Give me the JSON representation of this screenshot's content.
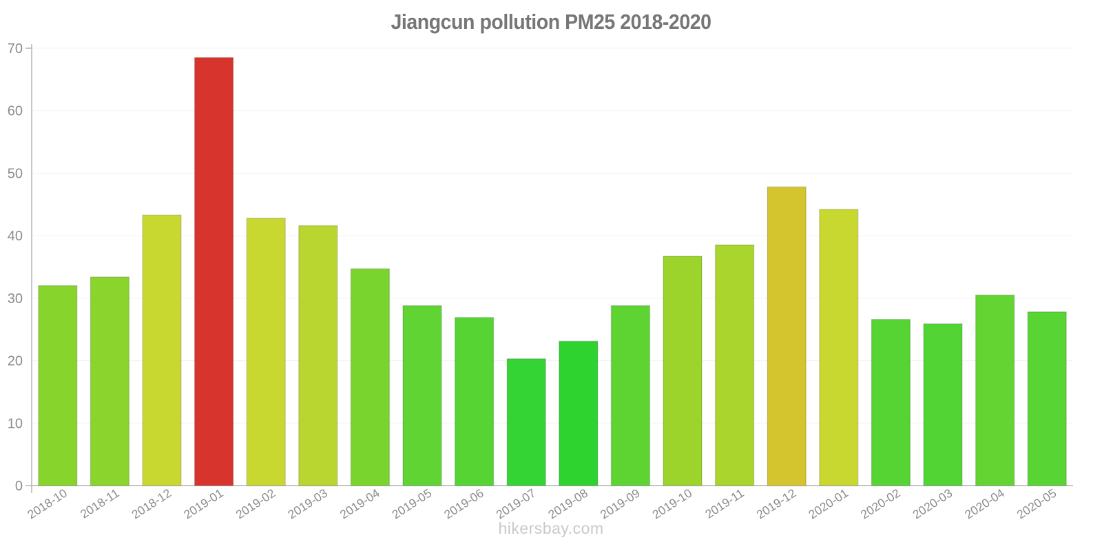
{
  "title": "Jiangcun pollution PM25 2018-2020",
  "watermark": "hikersbay.com",
  "chart_data": {
    "type": "bar",
    "title": "Jiangcun pollution PM25 2018-2020",
    "xlabel": "",
    "ylabel": "",
    "ylim": [
      0,
      70
    ],
    "yticks": [
      0,
      10,
      20,
      30,
      40,
      50,
      60,
      70
    ],
    "grid": true,
    "legend": "none",
    "categories": [
      "2018-10",
      "2018-11",
      "2018-12",
      "2019-01",
      "2019-02",
      "2019-03",
      "2019-04",
      "2019-05",
      "2019-06",
      "2019-07",
      "2019-08",
      "2019-09",
      "2019-10",
      "2019-11",
      "2019-12",
      "2020-01",
      "2020-02",
      "2020-03",
      "2020-04",
      "2020-05"
    ],
    "values": [
      32.0,
      33.4,
      43.3,
      68.5,
      42.8,
      41.6,
      34.7,
      28.8,
      26.9,
      20.3,
      23.1,
      28.8,
      36.7,
      38.5,
      47.8,
      44.2,
      26.6,
      25.9,
      30.5,
      27.8
    ],
    "bar_colors": [
      "#87d42d",
      "#8bd42d",
      "#c9d831",
      "#d8342e",
      "#c9d831",
      "#b9d630",
      "#7ad42e",
      "#5fd433",
      "#55d434",
      "#35d435",
      "#2ed32f",
      "#5ed433",
      "#9dd42c",
      "#aad52c",
      "#d4c52f",
      "#c9d831",
      "#55d434",
      "#52d434",
      "#64d433",
      "#58d434"
    ],
    "colors": {
      "axis": "#b3b3b3",
      "grid": "#f3f3f3",
      "tick_label": "#8c8c8c",
      "title": "#767676",
      "watermark": "#c9c9c9",
      "bar_stroke": "rgba(0,0,0,0.14)"
    }
  }
}
